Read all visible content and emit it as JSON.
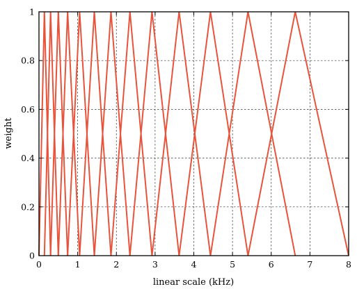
{
  "chart_data": {
    "type": "line",
    "title": "",
    "xlabel": "linear scale (kHz)",
    "ylabel": "weight",
    "xlim": [
      0,
      8
    ],
    "ylim": [
      0,
      1
    ],
    "x_ticks": [
      "0",
      "1",
      "2",
      "3",
      "4",
      "5",
      "6",
      "7",
      "8"
    ],
    "y_ticks": [
      "0",
      "0.2",
      "0.4",
      "0.6",
      "0.8",
      "1"
    ],
    "grid": true,
    "legend": "none",
    "line_color": "#e8533c",
    "filter_edges_khz": [
      0.0,
      0.14,
      0.3,
      0.5,
      0.74,
      1.05,
      1.43,
      1.86,
      2.35,
      2.92,
      3.62,
      4.43,
      5.4,
      6.62,
      8.0
    ],
    "series": [
      {
        "x": [
          0.0,
          0.14,
          0.3
        ],
        "y": [
          0,
          1,
          0
        ]
      },
      {
        "x": [
          0.14,
          0.3,
          0.5
        ],
        "y": [
          0,
          1,
          0
        ]
      },
      {
        "x": [
          0.3,
          0.5,
          0.74
        ],
        "y": [
          0,
          1,
          0
        ]
      },
      {
        "x": [
          0.5,
          0.74,
          1.05
        ],
        "y": [
          0,
          1,
          0
        ]
      },
      {
        "x": [
          0.74,
          1.05,
          1.43
        ],
        "y": [
          0,
          1,
          0
        ]
      },
      {
        "x": [
          1.05,
          1.43,
          1.86
        ],
        "y": [
          0,
          1,
          0
        ]
      },
      {
        "x": [
          1.43,
          1.86,
          2.35
        ],
        "y": [
          0,
          1,
          0
        ]
      },
      {
        "x": [
          1.86,
          2.35,
          2.92
        ],
        "y": [
          0,
          1,
          0
        ]
      },
      {
        "x": [
          2.35,
          2.92,
          3.62
        ],
        "y": [
          0,
          1,
          0
        ]
      },
      {
        "x": [
          2.92,
          3.62,
          4.43
        ],
        "y": [
          0,
          1,
          0
        ]
      },
      {
        "x": [
          3.62,
          4.43,
          5.4
        ],
        "y": [
          0,
          1,
          0
        ]
      },
      {
        "x": [
          4.43,
          5.4,
          6.62
        ],
        "y": [
          0,
          1,
          0
        ]
      },
      {
        "x": [
          5.4,
          6.62,
          8.0
        ],
        "y": [
          0,
          1,
          0
        ]
      }
    ]
  }
}
